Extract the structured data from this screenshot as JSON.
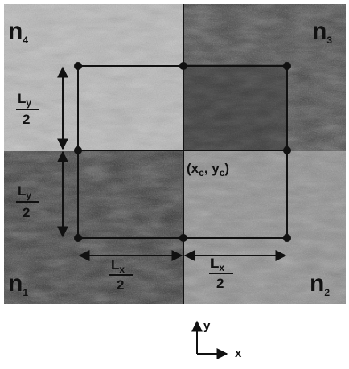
{
  "quadrants": [
    {
      "label": "n",
      "sub": "4"
    },
    {
      "label": "n",
      "sub": "3"
    },
    {
      "label": "n",
      "sub": "1"
    },
    {
      "label": "n",
      "sub": "2"
    }
  ],
  "dimensions": {
    "left_top": {
      "num": "L",
      "sub": "y",
      "den": "2"
    },
    "left_bottom": {
      "num": "L",
      "sub": "y",
      "den": "2"
    },
    "bottom_left": {
      "num": "L",
      "sub": "x",
      "den": "2"
    },
    "bottom_right": {
      "num": "L",
      "sub": "x",
      "den": "2"
    }
  },
  "center": {
    "parts": [
      "(x",
      "c",
      ", y",
      "c",
      ")"
    ]
  },
  "axes": {
    "y": "y",
    "x": "x"
  }
}
